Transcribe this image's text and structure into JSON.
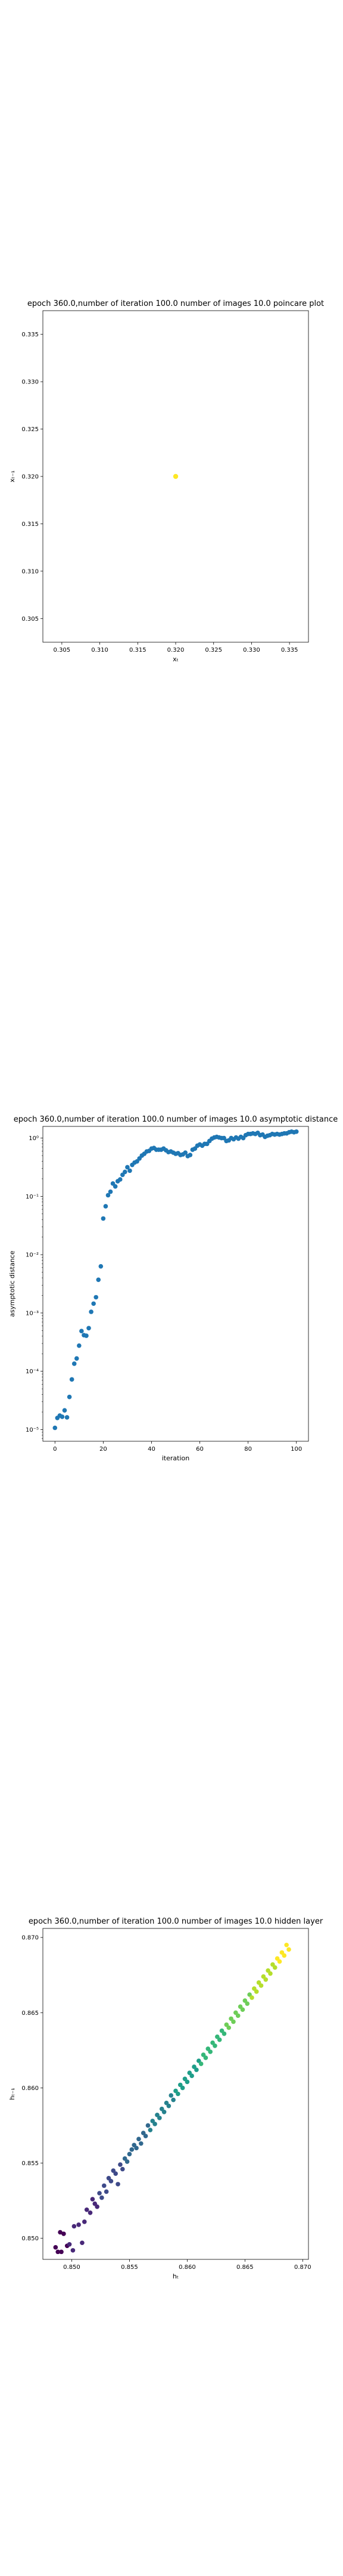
{
  "chart_data": [
    {
      "type": "scatter",
      "title": "epoch 360.0,number of iteration 100.0 number of images 10.0 poincare plot",
      "xlabel": "xₜ",
      "ylabel": "xₜ₋₁",
      "xlim": [
        0.3025,
        0.3375
      ],
      "ylim": [
        0.3025,
        0.3375
      ],
      "xticks": [
        0.305,
        0.31,
        0.315,
        0.32,
        0.325,
        0.33,
        0.335
      ],
      "xtick_labels": [
        "0.305",
        "0.310",
        "0.315",
        "0.320",
        "0.325",
        "0.330",
        "0.335"
      ],
      "yticks": [
        0.305,
        0.31,
        0.315,
        0.32,
        0.325,
        0.33,
        0.335
      ],
      "ytick_labels": [
        "0.305",
        "0.310",
        "0.315",
        "0.320",
        "0.325",
        "0.330",
        "0.335"
      ],
      "grid": false,
      "colors": [
        "#fde725"
      ],
      "points": [
        [
          0.32,
          0.32
        ]
      ]
    },
    {
      "type": "scatter",
      "title": "epoch 360.0,number of iteration 100.0  number of images 10.0 asymptotic distance",
      "xlabel": "iteration",
      "ylabel": "asymptotic distance",
      "xlim": [
        -5,
        105
      ],
      "xticks": [
        0,
        20,
        40,
        60,
        80,
        100
      ],
      "xtick_labels": [
        "0",
        "20",
        "40",
        "60",
        "80",
        "100"
      ],
      "yscale": "log",
      "ylim_log10": [
        -5.2,
        0.2
      ],
      "yticks_log10": [
        -5,
        -4,
        -3,
        -2,
        -1,
        0
      ],
      "ytick_labels": [
        "10⁻⁵",
        "10⁻⁴",
        "10⁻³",
        "10⁻²",
        "10⁻¹",
        "10⁰"
      ],
      "grid": false,
      "colors": [
        "#1f77b4"
      ],
      "x": [
        0,
        1,
        2,
        3,
        4,
        5,
        6,
        7,
        8,
        9,
        10,
        11,
        12,
        13,
        14,
        15,
        16,
        17,
        18,
        19,
        20,
        21,
        22,
        23,
        24,
        25,
        26,
        27,
        28,
        29,
        30,
        31,
        32,
        33,
        34,
        35,
        36,
        37,
        38,
        39,
        40,
        41,
        42,
        43,
        44,
        45,
        46,
        47,
        48,
        49,
        50,
        51,
        52,
        53,
        54,
        55,
        56,
        57,
        58,
        59,
        60,
        61,
        62,
        63,
        64,
        65,
        66,
        67,
        68,
        69,
        70,
        71,
        72,
        73,
        74,
        75,
        76,
        77,
        78,
        79,
        80,
        81,
        82,
        83,
        84,
        85,
        86,
        87,
        88,
        89,
        90,
        91,
        92,
        93,
        94,
        95,
        96,
        97,
        98,
        99,
        100
      ],
      "y_log10": [
        -4.97,
        -4.8,
        -4.76,
        -4.78,
        -4.67,
        -4.79,
        -4.44,
        -4.14,
        -3.87,
        -3.78,
        -3.56,
        -3.31,
        -3.38,
        -3.39,
        -3.26,
        -2.98,
        -2.84,
        -2.73,
        -2.43,
        -2.2,
        -1.38,
        -1.17,
        -0.98,
        -0.92,
        -0.78,
        -0.83,
        -0.74,
        -0.71,
        -0.63,
        -0.58,
        -0.5,
        -0.56,
        -0.46,
        -0.42,
        -0.4,
        -0.35,
        -0.3,
        -0.27,
        -0.23,
        -0.22,
        -0.18,
        -0.17,
        -0.2,
        -0.2,
        -0.2,
        -0.18,
        -0.21,
        -0.24,
        -0.23,
        -0.25,
        -0.27,
        -0.26,
        -0.29,
        -0.28,
        -0.25,
        -0.31,
        -0.29,
        -0.2,
        -0.18,
        -0.13,
        -0.11,
        -0.13,
        -0.1,
        -0.1,
        -0.05,
        -0.01,
        0.01,
        0.02,
        0.01,
        0.0,
        0.0,
        -0.05,
        -0.04,
        0.0,
        -0.02,
        0.01,
        -0.01,
        0.02,
        0.0,
        0.05,
        0.07,
        0.07,
        0.08,
        0.07,
        0.09,
        0.05,
        0.06,
        0.02,
        0.04,
        0.05,
        0.07,
        0.06,
        0.07,
        0.06,
        0.07,
        0.08,
        0.08,
        0.1,
        0.11,
        0.1,
        0.11
      ]
    },
    {
      "type": "scatter",
      "title": "epoch 360.0,number of iteration 100.0  number of images 10.0 hidden layer",
      "xlabel": "hₜ",
      "ylabel": "hₜ₋₁",
      "xlim": [
        0.8475,
        0.8705
      ],
      "ylim": [
        0.8486,
        0.8706
      ],
      "xticks": [
        0.85,
        0.855,
        0.86,
        0.865,
        0.87
      ],
      "xtick_labels": [
        "0.850",
        "0.855",
        "0.860",
        "0.865",
        "0.870"
      ],
      "yticks": [
        0.85,
        0.855,
        0.86,
        0.865,
        0.87
      ],
      "ytick_labels": [
        "0.850",
        "0.855",
        "0.860",
        "0.865",
        "0.870"
      ],
      "grid": false,
      "colormap": "viridis",
      "points": [
        [
          0.8486,
          0.8494
        ],
        [
          0.8488,
          0.8491
        ],
        [
          0.8491,
          0.8491
        ],
        [
          0.849,
          0.8504
        ],
        [
          0.8493,
          0.8503
        ],
        [
          0.8496,
          0.8495
        ],
        [
          0.8498,
          0.8496
        ],
        [
          0.8501,
          0.8492
        ],
        [
          0.8502,
          0.8508
        ],
        [
          0.8506,
          0.8509
        ],
        [
          0.8509,
          0.8497
        ],
        [
          0.8511,
          0.8511
        ],
        [
          0.8513,
          0.8519
        ],
        [
          0.8516,
          0.8517
        ],
        [
          0.8518,
          0.8526
        ],
        [
          0.852,
          0.8523
        ],
        [
          0.8522,
          0.8521
        ],
        [
          0.8524,
          0.853
        ],
        [
          0.8526,
          0.8527
        ],
        [
          0.8528,
          0.8535
        ],
        [
          0.853,
          0.8531
        ],
        [
          0.8532,
          0.854
        ],
        [
          0.8534,
          0.8538
        ],
        [
          0.8536,
          0.8545
        ],
        [
          0.8538,
          0.8543
        ],
        [
          0.854,
          0.8536
        ],
        [
          0.8542,
          0.8549
        ],
        [
          0.8544,
          0.8546
        ],
        [
          0.8546,
          0.8553
        ],
        [
          0.8548,
          0.8551
        ],
        [
          0.855,
          0.8556
        ],
        [
          0.8552,
          0.8559
        ],
        [
          0.8554,
          0.8562
        ],
        [
          0.8556,
          0.856
        ],
        [
          0.8558,
          0.8566
        ],
        [
          0.856,
          0.8563
        ],
        [
          0.8562,
          0.857
        ],
        [
          0.8564,
          0.8568
        ],
        [
          0.8566,
          0.8575
        ],
        [
          0.8568,
          0.8572
        ],
        [
          0.857,
          0.8578
        ],
        [
          0.8572,
          0.8576
        ],
        [
          0.8574,
          0.8582
        ],
        [
          0.8576,
          0.858
        ],
        [
          0.8578,
          0.8586
        ],
        [
          0.858,
          0.8584
        ],
        [
          0.8582,
          0.859
        ],
        [
          0.8584,
          0.8588
        ],
        [
          0.8586,
          0.8595
        ],
        [
          0.8588,
          0.8592
        ],
        [
          0.859,
          0.8598
        ],
        [
          0.8592,
          0.8596
        ],
        [
          0.8594,
          0.8602
        ],
        [
          0.8596,
          0.86
        ],
        [
          0.8598,
          0.8606
        ],
        [
          0.86,
          0.8604
        ],
        [
          0.8602,
          0.861
        ],
        [
          0.8604,
          0.8608
        ],
        [
          0.8606,
          0.8614
        ],
        [
          0.8608,
          0.8612
        ],
        [
          0.861,
          0.8618
        ],
        [
          0.8612,
          0.8616
        ],
        [
          0.8614,
          0.8622
        ],
        [
          0.8616,
          0.862
        ],
        [
          0.8618,
          0.8626
        ],
        [
          0.862,
          0.8624
        ],
        [
          0.8622,
          0.863
        ],
        [
          0.8624,
          0.8628
        ],
        [
          0.8626,
          0.8634
        ],
        [
          0.8628,
          0.8632
        ],
        [
          0.863,
          0.8638
        ],
        [
          0.8632,
          0.8636
        ],
        [
          0.8634,
          0.8642
        ],
        [
          0.8636,
          0.864
        ],
        [
          0.8638,
          0.8646
        ],
        [
          0.864,
          0.8644
        ],
        [
          0.8642,
          0.865
        ],
        [
          0.8644,
          0.8648
        ],
        [
          0.8646,
          0.8654
        ],
        [
          0.8648,
          0.8652
        ],
        [
          0.865,
          0.8658
        ],
        [
          0.8652,
          0.8656
        ],
        [
          0.8654,
          0.8662
        ],
        [
          0.8656,
          0.866
        ],
        [
          0.8658,
          0.8666
        ],
        [
          0.866,
          0.8664
        ],
        [
          0.8662,
          0.867
        ],
        [
          0.8664,
          0.8668
        ],
        [
          0.8666,
          0.8674
        ],
        [
          0.8668,
          0.8672
        ],
        [
          0.867,
          0.8678
        ],
        [
          0.8672,
          0.8676
        ],
        [
          0.8674,
          0.8682
        ],
        [
          0.8676,
          0.868
        ],
        [
          0.8678,
          0.8686
        ],
        [
          0.868,
          0.8684
        ],
        [
          0.8682,
          0.869
        ],
        [
          0.8684,
          0.8688
        ],
        [
          0.8686,
          0.8695
        ],
        [
          0.8688,
          0.8692
        ]
      ]
    }
  ]
}
